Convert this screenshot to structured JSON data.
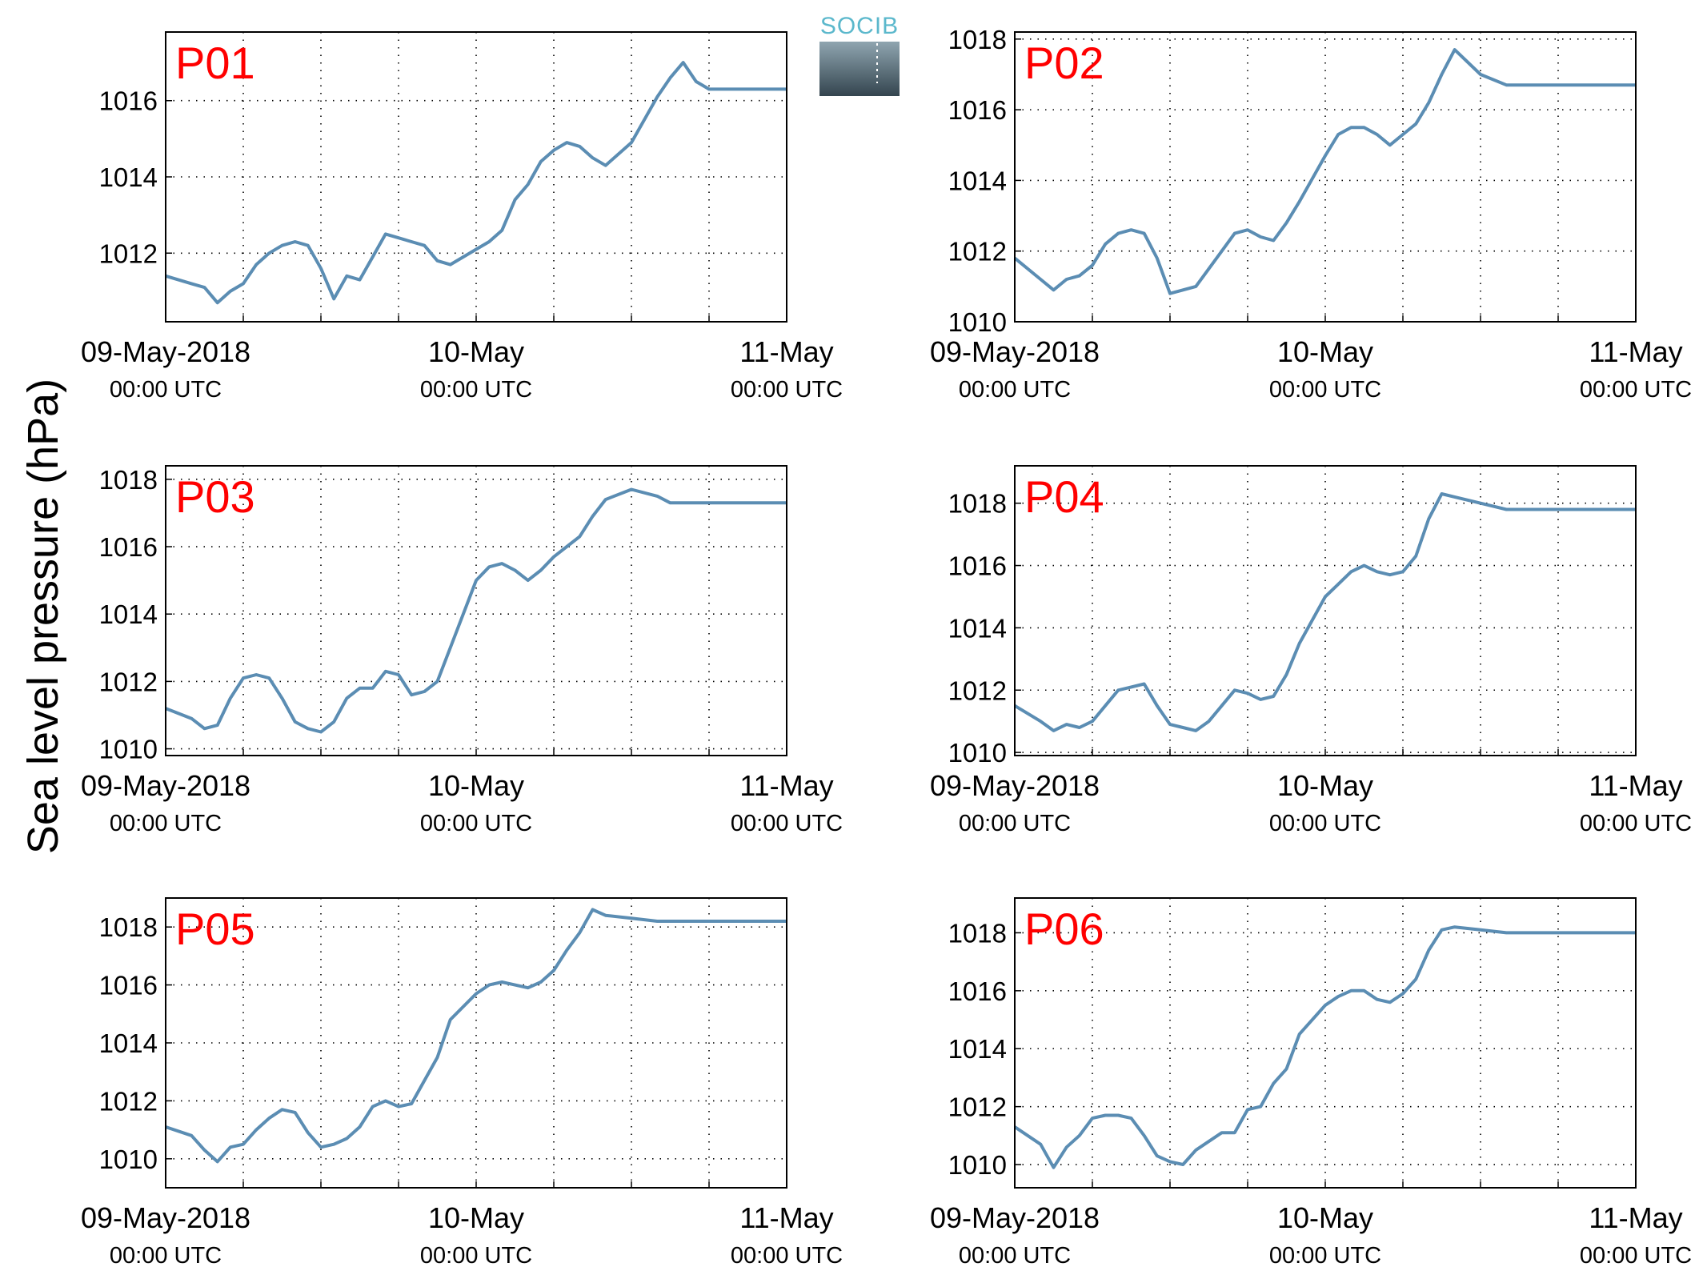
{
  "figure": {
    "ylabel": "Sea level pressure (hPa)",
    "logo": {
      "text": "SOCIB",
      "colors": {
        "text": "#5bb8cc",
        "top": "#8fa5b0",
        "bottom": "#34454f"
      }
    }
  },
  "colors": {
    "line": "#5b8db3",
    "label": "#ff0000",
    "axis": "#000000",
    "grid": "#000000"
  },
  "chart_data": [
    {
      "type": "line",
      "title": "P01",
      "grid": true,
      "xlim": [
        "2018-05-09T00:00",
        "2018-05-11T00:00"
      ],
      "ylim": [
        1010.2,
        1017.8
      ],
      "yticks": [
        1012,
        1014,
        1016
      ],
      "xticks": [
        "2018-05-09T00:00",
        "2018-05-10T00:00",
        "2018-05-11T00:00"
      ],
      "xtick_labels": [
        [
          "09-May-2018",
          "00:00 UTC"
        ],
        [
          "10-May",
          "00:00 UTC"
        ],
        [
          "11-May",
          "00:00 UTC"
        ]
      ],
      "series": [
        {
          "x": [
            "2018-05-09T00:00",
            "2018-05-09T02:00",
            "2018-05-09T03:00",
            "2018-05-09T04:00",
            "2018-05-09T05:00",
            "2018-05-09T06:00",
            "2018-05-09T07:00",
            "2018-05-09T08:00",
            "2018-05-09T09:00",
            "2018-05-09T10:00",
            "2018-05-09T11:00",
            "2018-05-09T12:00",
            "2018-05-09T13:00",
            "2018-05-09T14:00",
            "2018-05-09T15:00",
            "2018-05-09T16:00",
            "2018-05-09T17:00",
            "2018-05-09T18:00",
            "2018-05-09T19:00",
            "2018-05-09T20:00",
            "2018-05-09T21:00",
            "2018-05-09T22:00",
            "2018-05-10T00:00",
            "2018-05-10T01:00",
            "2018-05-10T02:00",
            "2018-05-10T03:00",
            "2018-05-10T04:00",
            "2018-05-10T05:00",
            "2018-05-10T06:00",
            "2018-05-10T07:00",
            "2018-05-10T08:00",
            "2018-05-10T09:00",
            "2018-05-10T10:00",
            "2018-05-10T12:00",
            "2018-05-10T14:00",
            "2018-05-10T15:00",
            "2018-05-10T16:00",
            "2018-05-10T17:00",
            "2018-05-10T18:00",
            "2018-05-10T19:00",
            "2018-05-10T20:00",
            "2018-05-10T21:00",
            "2018-05-10T22:00",
            "2018-05-10T23:00",
            "2018-05-11T00:00"
          ],
          "y": [
            1011.4,
            1011.2,
            1011.1,
            1010.7,
            1011.0,
            1011.2,
            1011.7,
            1012.0,
            1012.2,
            1012.3,
            1012.2,
            1011.6,
            1010.8,
            1011.4,
            1011.3,
            1011.9,
            1012.5,
            1012.4,
            1012.3,
            1012.2,
            1011.8,
            1011.7,
            1012.1,
            1012.3,
            1012.6,
            1013.4,
            1013.8,
            1014.4,
            1014.7,
            1014.9,
            1014.8,
            1014.5,
            1014.3,
            1014.9,
            1016.1,
            1016.6,
            1017.0,
            1016.5,
            1016.3,
            1016.3,
            1016.3,
            1016.3,
            1016.3,
            1016.3,
            1016.3
          ]
        }
      ]
    },
    {
      "type": "line",
      "title": "P02",
      "grid": true,
      "xlim": [
        "2018-05-09T00:00",
        "2018-05-11T00:00"
      ],
      "ylim": [
        1010,
        1018.2
      ],
      "yticks": [
        1010,
        1012,
        1014,
        1016,
        1018
      ],
      "xticks": [
        "2018-05-09T00:00",
        "2018-05-10T00:00",
        "2018-05-11T00:00"
      ],
      "xtick_labels": [
        [
          "09-May-2018",
          "00:00 UTC"
        ],
        [
          "10-May",
          "00:00 UTC"
        ],
        [
          "11-May",
          "00:00 UTC"
        ]
      ],
      "series": [
        {
          "x": [
            "2018-05-09T00:00",
            "2018-05-09T02:00",
            "2018-05-09T03:00",
            "2018-05-09T04:00",
            "2018-05-09T05:00",
            "2018-05-09T06:00",
            "2018-05-09T07:00",
            "2018-05-09T08:00",
            "2018-05-09T09:00",
            "2018-05-09T10:00",
            "2018-05-09T11:00",
            "2018-05-09T12:00",
            "2018-05-09T13:00",
            "2018-05-09T14:00",
            "2018-05-09T15:00",
            "2018-05-09T16:00",
            "2018-05-09T17:00",
            "2018-05-09T18:00",
            "2018-05-09T19:00",
            "2018-05-09T20:00",
            "2018-05-09T21:00",
            "2018-05-09T22:00",
            "2018-05-10T00:00",
            "2018-05-10T01:00",
            "2018-05-10T02:00",
            "2018-05-10T03:00",
            "2018-05-10T04:00",
            "2018-05-10T05:00",
            "2018-05-10T06:00",
            "2018-05-10T07:00",
            "2018-05-10T08:00",
            "2018-05-10T09:00",
            "2018-05-10T10:00",
            "2018-05-10T12:00",
            "2018-05-10T14:00",
            "2018-05-10T15:00",
            "2018-05-10T16:00",
            "2018-05-10T17:00",
            "2018-05-10T18:00",
            "2018-05-10T19:00",
            "2018-05-10T20:00",
            "2018-05-10T21:00",
            "2018-05-10T22:00",
            "2018-05-10T23:00",
            "2018-05-11T00:00"
          ],
          "y": [
            1011.8,
            1011.2,
            1010.9,
            1011.2,
            1011.3,
            1011.6,
            1012.2,
            1012.5,
            1012.6,
            1012.5,
            1011.8,
            1010.8,
            1010.9,
            1011.0,
            1011.5,
            1012.0,
            1012.5,
            1012.6,
            1012.4,
            1012.3,
            1012.8,
            1013.4,
            1014.7,
            1015.3,
            1015.5,
            1015.5,
            1015.3,
            1015.0,
            1015.3,
            1015.6,
            1016.2,
            1017.0,
            1017.7,
            1017.0,
            1016.7,
            1016.7,
            1016.7,
            1016.7,
            1016.7,
            1016.7,
            1016.7,
            1016.7,
            1016.7,
            1016.7,
            1016.7
          ]
        }
      ]
    },
    {
      "type": "line",
      "title": "P03",
      "grid": true,
      "xlim": [
        "2018-05-09T00:00",
        "2018-05-11T00:00"
      ],
      "ylim": [
        1009.8,
        1018.4
      ],
      "yticks": [
        1010,
        1012,
        1014,
        1016,
        1018
      ],
      "xticks": [
        "2018-05-09T00:00",
        "2018-05-10T00:00",
        "2018-05-11T00:00"
      ],
      "xtick_labels": [
        [
          "09-May-2018",
          "00:00 UTC"
        ],
        [
          "10-May",
          "00:00 UTC"
        ],
        [
          "11-May",
          "00:00 UTC"
        ]
      ],
      "series": [
        {
          "x": [
            "2018-05-09T00:00",
            "2018-05-09T02:00",
            "2018-05-09T03:00",
            "2018-05-09T04:00",
            "2018-05-09T05:00",
            "2018-05-09T06:00",
            "2018-05-09T07:00",
            "2018-05-09T08:00",
            "2018-05-09T09:00",
            "2018-05-09T10:00",
            "2018-05-09T11:00",
            "2018-05-09T12:00",
            "2018-05-09T13:00",
            "2018-05-09T14:00",
            "2018-05-09T15:00",
            "2018-05-09T16:00",
            "2018-05-09T17:00",
            "2018-05-09T18:00",
            "2018-05-09T19:00",
            "2018-05-09T20:00",
            "2018-05-09T21:00",
            "2018-05-09T22:00",
            "2018-05-10T00:00",
            "2018-05-10T01:00",
            "2018-05-10T02:00",
            "2018-05-10T03:00",
            "2018-05-10T04:00",
            "2018-05-10T05:00",
            "2018-05-10T06:00",
            "2018-05-10T07:00",
            "2018-05-10T08:00",
            "2018-05-10T09:00",
            "2018-05-10T10:00",
            "2018-05-10T12:00",
            "2018-05-10T14:00",
            "2018-05-10T15:00",
            "2018-05-10T16:00",
            "2018-05-10T17:00",
            "2018-05-10T18:00",
            "2018-05-10T19:00",
            "2018-05-10T20:00",
            "2018-05-10T21:00",
            "2018-05-10T22:00",
            "2018-05-10T23:00",
            "2018-05-11T00:00"
          ],
          "y": [
            1011.2,
            1010.9,
            1010.6,
            1010.7,
            1011.5,
            1012.1,
            1012.2,
            1012.1,
            1011.5,
            1010.8,
            1010.6,
            1010.5,
            1010.8,
            1011.5,
            1011.8,
            1011.8,
            1012.3,
            1012.2,
            1011.6,
            1011.7,
            1012.0,
            1013.0,
            1015.0,
            1015.4,
            1015.5,
            1015.3,
            1015.0,
            1015.3,
            1015.7,
            1016.0,
            1016.3,
            1016.9,
            1017.4,
            1017.7,
            1017.5,
            1017.3,
            1017.3,
            1017.3,
            1017.3,
            1017.3,
            1017.3,
            1017.3,
            1017.3,
            1017.3,
            1017.3
          ]
        }
      ]
    },
    {
      "type": "line",
      "title": "P04",
      "grid": true,
      "xlim": [
        "2018-05-09T00:00",
        "2018-05-11T00:00"
      ],
      "ylim": [
        1009.9,
        1019.2
      ],
      "yticks": [
        1010,
        1012,
        1014,
        1016,
        1018
      ],
      "xticks": [
        "2018-05-09T00:00",
        "2018-05-10T00:00",
        "2018-05-11T00:00"
      ],
      "xtick_labels": [
        [
          "09-May-2018",
          "00:00 UTC"
        ],
        [
          "10-May",
          "00:00 UTC"
        ],
        [
          "11-May",
          "00:00 UTC"
        ]
      ],
      "series": [
        {
          "x": [
            "2018-05-09T00:00",
            "2018-05-09T02:00",
            "2018-05-09T03:00",
            "2018-05-09T04:00",
            "2018-05-09T05:00",
            "2018-05-09T06:00",
            "2018-05-09T07:00",
            "2018-05-09T08:00",
            "2018-05-09T09:00",
            "2018-05-09T10:00",
            "2018-05-09T11:00",
            "2018-05-09T12:00",
            "2018-05-09T13:00",
            "2018-05-09T14:00",
            "2018-05-09T15:00",
            "2018-05-09T16:00",
            "2018-05-09T17:00",
            "2018-05-09T18:00",
            "2018-05-09T19:00",
            "2018-05-09T20:00",
            "2018-05-09T21:00",
            "2018-05-09T22:00",
            "2018-05-10T00:00",
            "2018-05-10T01:00",
            "2018-05-10T02:00",
            "2018-05-10T03:00",
            "2018-05-10T04:00",
            "2018-05-10T05:00",
            "2018-05-10T06:00",
            "2018-05-10T07:00",
            "2018-05-10T08:00",
            "2018-05-10T09:00",
            "2018-05-10T10:00",
            "2018-05-10T12:00",
            "2018-05-10T14:00",
            "2018-05-10T15:00",
            "2018-05-10T16:00",
            "2018-05-10T17:00",
            "2018-05-10T18:00",
            "2018-05-10T19:00",
            "2018-05-10T20:00",
            "2018-05-10T21:00",
            "2018-05-10T22:00",
            "2018-05-10T23:00",
            "2018-05-11T00:00"
          ],
          "y": [
            1011.5,
            1011.0,
            1010.7,
            1010.9,
            1010.8,
            1011.0,
            1011.5,
            1012.0,
            1012.1,
            1012.2,
            1011.5,
            1010.9,
            1010.8,
            1010.7,
            1011.0,
            1011.5,
            1012.0,
            1011.9,
            1011.7,
            1011.8,
            1012.5,
            1013.5,
            1015.0,
            1015.4,
            1015.8,
            1016.0,
            1015.8,
            1015.7,
            1015.8,
            1016.3,
            1017.5,
            1018.3,
            1018.2,
            1018.0,
            1017.8,
            1017.8,
            1017.8,
            1017.8,
            1017.8,
            1017.8,
            1017.8,
            1017.8,
            1017.8,
            1017.8,
            1017.8
          ]
        }
      ]
    },
    {
      "type": "line",
      "title": "P05",
      "grid": true,
      "xlim": [
        "2018-05-09T00:00",
        "2018-05-11T00:00"
      ],
      "ylim": [
        1009.0,
        1019.0
      ],
      "yticks": [
        1010,
        1012,
        1014,
        1016,
        1018
      ],
      "xticks": [
        "2018-05-09T00:00",
        "2018-05-10T00:00",
        "2018-05-11T00:00"
      ],
      "xtick_labels": [
        [
          "09-May-2018",
          "00:00 UTC"
        ],
        [
          "10-May",
          "00:00 UTC"
        ],
        [
          "11-May",
          "00:00 UTC"
        ]
      ],
      "series": [
        {
          "x": [
            "2018-05-09T00:00",
            "2018-05-09T02:00",
            "2018-05-09T03:00",
            "2018-05-09T04:00",
            "2018-05-09T05:00",
            "2018-05-09T06:00",
            "2018-05-09T07:00",
            "2018-05-09T08:00",
            "2018-05-09T09:00",
            "2018-05-09T10:00",
            "2018-05-09T11:00",
            "2018-05-09T12:00",
            "2018-05-09T13:00",
            "2018-05-09T14:00",
            "2018-05-09T15:00",
            "2018-05-09T16:00",
            "2018-05-09T17:00",
            "2018-05-09T18:00",
            "2018-05-09T19:00",
            "2018-05-09T20:00",
            "2018-05-09T21:00",
            "2018-05-09T22:00",
            "2018-05-10T00:00",
            "2018-05-10T01:00",
            "2018-05-10T02:00",
            "2018-05-10T03:00",
            "2018-05-10T04:00",
            "2018-05-10T05:00",
            "2018-05-10T06:00",
            "2018-05-10T07:00",
            "2018-05-10T08:00",
            "2018-05-10T09:00",
            "2018-05-10T10:00",
            "2018-05-10T12:00",
            "2018-05-10T14:00",
            "2018-05-10T15:00",
            "2018-05-10T16:00",
            "2018-05-10T17:00",
            "2018-05-10T18:00",
            "2018-05-10T19:00",
            "2018-05-10T20:00",
            "2018-05-10T21:00",
            "2018-05-10T22:00",
            "2018-05-10T23:00",
            "2018-05-11T00:00"
          ],
          "y": [
            1011.1,
            1010.8,
            1010.3,
            1009.9,
            1010.4,
            1010.5,
            1011.0,
            1011.4,
            1011.7,
            1011.6,
            1010.9,
            1010.4,
            1010.5,
            1010.7,
            1011.1,
            1011.8,
            1012.0,
            1011.8,
            1011.9,
            1012.7,
            1013.5,
            1014.8,
            1015.7,
            1016.0,
            1016.1,
            1016.0,
            1015.9,
            1016.1,
            1016.5,
            1017.2,
            1017.8,
            1018.6,
            1018.4,
            1018.3,
            1018.2,
            1018.2,
            1018.2,
            1018.2,
            1018.2,
            1018.2,
            1018.2,
            1018.2,
            1018.2,
            1018.2,
            1018.2
          ]
        }
      ]
    },
    {
      "type": "line",
      "title": "P06",
      "grid": true,
      "xlim": [
        "2018-05-09T00:00",
        "2018-05-11T00:00"
      ],
      "ylim": [
        1009.2,
        1019.2
      ],
      "yticks": [
        1010,
        1012,
        1014,
        1016,
        1018
      ],
      "xticks": [
        "2018-05-09T00:00",
        "2018-05-10T00:00",
        "2018-05-11T00:00"
      ],
      "xtick_labels": [
        [
          "09-May-2018",
          "00:00 UTC"
        ],
        [
          "10-May",
          "00:00 UTC"
        ],
        [
          "11-May",
          "00:00 UTC"
        ]
      ],
      "series": [
        {
          "x": [
            "2018-05-09T00:00",
            "2018-05-09T02:00",
            "2018-05-09T03:00",
            "2018-05-09T04:00",
            "2018-05-09T05:00",
            "2018-05-09T06:00",
            "2018-05-09T07:00",
            "2018-05-09T08:00",
            "2018-05-09T09:00",
            "2018-05-09T10:00",
            "2018-05-09T11:00",
            "2018-05-09T12:00",
            "2018-05-09T13:00",
            "2018-05-09T14:00",
            "2018-05-09T15:00",
            "2018-05-09T16:00",
            "2018-05-09T17:00",
            "2018-05-09T18:00",
            "2018-05-09T19:00",
            "2018-05-09T20:00",
            "2018-05-09T21:00",
            "2018-05-09T22:00",
            "2018-05-10T00:00",
            "2018-05-10T01:00",
            "2018-05-10T02:00",
            "2018-05-10T03:00",
            "2018-05-10T04:00",
            "2018-05-10T05:00",
            "2018-05-10T06:00",
            "2018-05-10T07:00",
            "2018-05-10T08:00",
            "2018-05-10T09:00",
            "2018-05-10T10:00",
            "2018-05-10T12:00",
            "2018-05-10T14:00",
            "2018-05-10T15:00",
            "2018-05-10T16:00",
            "2018-05-10T17:00",
            "2018-05-10T18:00",
            "2018-05-10T19:00",
            "2018-05-10T20:00",
            "2018-05-10T21:00",
            "2018-05-10T22:00",
            "2018-05-10T23:00",
            "2018-05-11T00:00"
          ],
          "y": [
            1011.3,
            1010.7,
            1009.9,
            1010.6,
            1011.0,
            1011.6,
            1011.7,
            1011.7,
            1011.6,
            1011.0,
            1010.3,
            1010.1,
            1010.0,
            1010.5,
            1010.8,
            1011.1,
            1011.1,
            1011.9,
            1012.0,
            1012.8,
            1013.3,
            1014.5,
            1015.5,
            1015.8,
            1016.0,
            1016.0,
            1015.7,
            1015.6,
            1015.9,
            1016.4,
            1017.4,
            1018.1,
            1018.2,
            1018.1,
            1018.0,
            1018.0,
            1018.0,
            1018.0,
            1018.0,
            1018.0,
            1018.0,
            1018.0,
            1018.0,
            1018.0,
            1018.0
          ]
        }
      ]
    }
  ]
}
